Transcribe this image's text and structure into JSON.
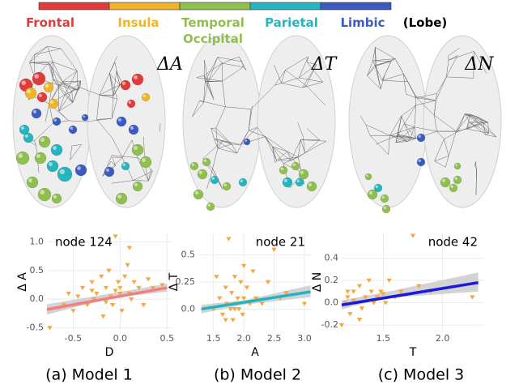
{
  "legend": {
    "title": "(Lobe)",
    "items": [
      {
        "label": "Frontal",
        "color": "#e03c3c"
      },
      {
        "label": "Insula",
        "color": "#f0b429"
      },
      {
        "label": "Temporal Occipital",
        "color": "#8fbf4f"
      },
      {
        "label": "Parietal",
        "color": "#26b5bf"
      },
      {
        "label": "Limbic",
        "color": "#3b5bbf"
      }
    ]
  },
  "brains": [
    {
      "label": "ΔA"
    },
    {
      "label": "ΔT"
    },
    {
      "label": "ΔN"
    }
  ],
  "captions": [
    "(a) Model 1",
    "(b) Model 2",
    "(c) Model 3"
  ],
  "chart_data": [
    {
      "type": "scatter",
      "annotation": "node 124",
      "x_label": "D",
      "y_label": "Δ A",
      "point_color": "#f4a742",
      "xlim": [
        -0.78,
        0.55
      ],
      "ylim": [
        -0.55,
        1.15
      ],
      "xticks": [
        -0.5,
        {
          "value": 0,
          "label": "0.0"
        },
        0.5
      ],
      "yticks": [
        -0.5,
        {
          "value": 0,
          "label": "0.0"
        },
        0.5,
        {
          "value": 1,
          "label": "1.0"
        }
      ],
      "x": [
        -0.75,
        -0.6,
        -0.55,
        -0.5,
        -0.45,
        -0.4,
        -0.35,
        -0.3,
        -0.28,
        -0.25,
        -0.2,
        -0.18,
        -0.15,
        -0.12,
        -0.1,
        -0.08,
        -0.05,
        -0.02,
        0.0,
        0.02,
        0.05,
        0.08,
        0.1,
        0.12,
        0.15,
        0.2,
        0.25,
        0.3,
        0.35,
        0.45,
        -0.05,
        0.0,
        -0.15,
        -0.3,
        0.1
      ],
      "values": [
        -0.5,
        -0.1,
        0.1,
        -0.2,
        0.05,
        0.2,
        -0.1,
        0.3,
        0.0,
        0.1,
        0.4,
        -0.3,
        0.2,
        0.5,
        0.05,
        -0.1,
        1.1,
        0.3,
        0.1,
        -0.2,
        0.4,
        0.6,
        0.1,
        0.0,
        0.3,
        0.2,
        -0.1,
        0.35,
        0.2,
        0.25,
        0.15,
        0.2,
        -0.05,
        0.15,
        0.9
      ],
      "fit": {
        "color": "#f08080",
        "x": [
          -0.78,
          0.5
        ],
        "y": [
          -0.18,
          0.2
        ]
      },
      "band": {
        "color": "#c8c8c8",
        "x": [
          -0.78,
          -0.1,
          0.5
        ],
        "lower": [
          -0.27,
          0.02,
          0.13
        ],
        "upper": [
          -0.09,
          0.1,
          0.27
        ]
      }
    },
    {
      "type": "scatter",
      "annotation": "node 21",
      "x_label": "A",
      "y_label": "Δ T",
      "point_color": "#f4a742",
      "xlim": [
        1.25,
        3.12
      ],
      "ylim": [
        -0.2,
        0.7
      ],
      "xticks": [
        1.5,
        {
          "value": 2,
          "label": "2.0"
        },
        2.5,
        {
          "value": 3,
          "label": "3.0"
        }
      ],
      "yticks": [
        {
          "value": 0,
          "label": "0.0"
        },
        0.25,
        0.5
      ],
      "x": [
        1.5,
        1.6,
        1.65,
        1.7,
        1.72,
        1.75,
        1.78,
        1.8,
        1.82,
        1.85,
        1.88,
        1.9,
        1.92,
        1.95,
        1.98,
        2.0,
        2.05,
        2.1,
        2.15,
        2.2,
        2.3,
        2.4,
        2.5,
        2.6,
        2.7,
        3.0,
        1.55,
        1.7,
        1.85,
        2.0
      ],
      "values": [
        0.0,
        0.1,
        -0.05,
        0.2,
        0.05,
        0.65,
        0.0,
        0.15,
        -0.1,
        0.3,
        0.05,
        0.1,
        0.0,
        0.25,
        -0.05,
        0.1,
        0.2,
        0.05,
        0.35,
        0.1,
        0.05,
        0.25,
        0.55,
        0.1,
        0.15,
        0.05,
        0.3,
        -0.1,
        0.0,
        0.4
      ],
      "fit": {
        "color": "#1fb5c0",
        "x": [
          1.3,
          3.1
        ],
        "y": [
          0.0,
          0.16
        ]
      },
      "band": {
        "color": "#c8c8c8",
        "x": [
          1.3,
          2.0,
          3.1
        ],
        "lower": [
          -0.04,
          0.04,
          0.11
        ],
        "upper": [
          0.04,
          0.08,
          0.22
        ]
      }
    },
    {
      "type": "scatter",
      "annotation": "node 42",
      "x_label": "T",
      "y_label": "Δ N",
      "point_color": "#f4a742",
      "xlim": [
        1.15,
        2.35
      ],
      "ylim": [
        -0.25,
        0.62
      ],
      "xticks": [
        1.5,
        {
          "value": 2,
          "label": "2.0"
        }
      ],
      "yticks": [
        -0.2,
        {
          "value": 0,
          "label": "0.0"
        },
        0.2,
        0.4
      ],
      "x": [
        1.15,
        1.18,
        1.2,
        1.22,
        1.25,
        1.27,
        1.3,
        1.32,
        1.35,
        1.38,
        1.4,
        1.42,
        1.45,
        1.48,
        1.5,
        1.52,
        1.55,
        1.6,
        1.65,
        1.75,
        1.8,
        1.9,
        2.25,
        1.3,
        1.2,
        1.25
      ],
      "values": [
        -0.2,
        0.0,
        0.05,
        -0.1,
        0.1,
        0.0,
        0.15,
        -0.05,
        0.05,
        0.2,
        0.1,
        0.0,
        0.05,
        0.1,
        0.08,
        0.0,
        0.2,
        0.05,
        0.1,
        0.6,
        0.15,
        0.1,
        0.05,
        -0.15,
        0.1,
        0.02
      ],
      "fit": {
        "color": "#1a1adf",
        "x": [
          1.15,
          2.3
        ],
        "y": [
          -0.02,
          0.18
        ]
      },
      "band": {
        "color": "#c8c8c8",
        "x": [
          1.15,
          1.5,
          2.3
        ],
        "lower": [
          -0.06,
          0.04,
          0.1
        ],
        "upper": [
          0.02,
          0.09,
          0.27
        ]
      }
    }
  ]
}
